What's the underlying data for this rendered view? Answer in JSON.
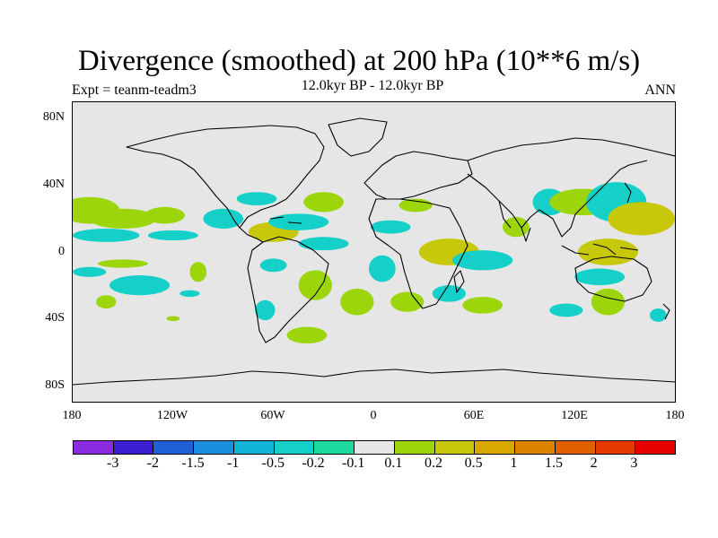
{
  "chart_data": {
    "type": "heatmap",
    "title": "Divergence (smoothed) at 200 hPa (10**6 m/s)",
    "subtitle": "12.0kyr BP - 12.0kyr BP",
    "left_label": "Expt = teanm-teadm3",
    "right_label": "ANN",
    "x_range": [
      -180,
      180
    ],
    "y_range": [
      -90,
      90
    ],
    "x_ticks": [
      "180",
      "120W",
      "60W",
      "0",
      "60E",
      "120E",
      "180"
    ],
    "y_ticks": [
      "80N",
      "40N",
      "0",
      "40S",
      "80S"
    ],
    "colorbar": {
      "colors": [
        "#8a2be2",
        "#3a1fd0",
        "#1f5fd8",
        "#1a8fe0",
        "#12b4d8",
        "#14d0c8",
        "#1ed9a0",
        "#e6e6e6",
        "#9cd60a",
        "#c8c80a",
        "#d8a800",
        "#dc8400",
        "#e06000",
        "#e43a00",
        "#e80000"
      ],
      "labels": [
        "-3",
        "-2",
        "-1.5",
        "-1",
        "-0.5",
        "-0.2",
        "-0.1",
        "0.1",
        "0.2",
        "0.5",
        "1",
        "1.5",
        "2",
        "3"
      ]
    },
    "background_color": "#e6e6e6",
    "blobs": [
      {
        "lon": -170,
        "lat": 25,
        "rx": 18,
        "ry": 8,
        "cls": "green"
      },
      {
        "lon": -150,
        "lat": 20,
        "rx": 20,
        "ry": 6,
        "cls": "green"
      },
      {
        "lon": -125,
        "lat": 22,
        "rx": 12,
        "ry": 5,
        "cls": "green"
      },
      {
        "lon": -160,
        "lat": 10,
        "rx": 20,
        "ry": 4,
        "cls": "cyan"
      },
      {
        "lon": -120,
        "lat": 10,
        "rx": 15,
        "ry": 3,
        "cls": "cyan"
      },
      {
        "lon": -170,
        "lat": -12,
        "rx": 10,
        "ry": 3,
        "cls": "cyan"
      },
      {
        "lon": -150,
        "lat": -7,
        "rx": 15,
        "ry": 2.5,
        "cls": "green"
      },
      {
        "lon": -140,
        "lat": -20,
        "rx": 18,
        "ry": 6,
        "cls": "cyan"
      },
      {
        "lon": -160,
        "lat": -30,
        "rx": 6,
        "ry": 4,
        "cls": "green"
      },
      {
        "lon": -110,
        "lat": -25,
        "rx": 6,
        "ry": 2,
        "cls": "cyan"
      },
      {
        "lon": -120,
        "lat": -40,
        "rx": 4,
        "ry": 1.5,
        "cls": "green"
      },
      {
        "lon": -105,
        "lat": -12,
        "rx": 5,
        "ry": 6,
        "cls": "green"
      },
      {
        "lon": -90,
        "lat": 20,
        "rx": 12,
        "ry": 6,
        "cls": "cyan"
      },
      {
        "lon": -70,
        "lat": 32,
        "rx": 12,
        "ry": 4,
        "cls": "cyan"
      },
      {
        "lon": -60,
        "lat": 12,
        "rx": 15,
        "ry": 6,
        "cls": "yellow"
      },
      {
        "lon": -45,
        "lat": 18,
        "rx": 18,
        "ry": 5,
        "cls": "cyan"
      },
      {
        "lon": -30,
        "lat": 30,
        "rx": 12,
        "ry": 6,
        "cls": "green"
      },
      {
        "lon": -30,
        "lat": 5,
        "rx": 15,
        "ry": 4,
        "cls": "cyan"
      },
      {
        "lon": -60,
        "lat": -8,
        "rx": 8,
        "ry": 4,
        "cls": "cyan"
      },
      {
        "lon": -35,
        "lat": -20,
        "rx": 10,
        "ry": 9,
        "cls": "green"
      },
      {
        "lon": -65,
        "lat": -35,
        "rx": 6,
        "ry": 6,
        "cls": "cyan"
      },
      {
        "lon": -40,
        "lat": -50,
        "rx": 12,
        "ry": 5,
        "cls": "green"
      },
      {
        "lon": -10,
        "lat": -30,
        "rx": 10,
        "ry": 8,
        "cls": "green"
      },
      {
        "lon": 10,
        "lat": 15,
        "rx": 12,
        "ry": 4,
        "cls": "cyan"
      },
      {
        "lon": 25,
        "lat": 28,
        "rx": 10,
        "ry": 4,
        "cls": "green"
      },
      {
        "lon": 5,
        "lat": -10,
        "rx": 8,
        "ry": 8,
        "cls": "cyan"
      },
      {
        "lon": 20,
        "lat": -30,
        "rx": 10,
        "ry": 6,
        "cls": "green"
      },
      {
        "lon": 45,
        "lat": 0,
        "rx": 18,
        "ry": 8,
        "cls": "yellow"
      },
      {
        "lon": 65,
        "lat": -5,
        "rx": 18,
        "ry": 6,
        "cls": "cyan"
      },
      {
        "lon": 45,
        "lat": -25,
        "rx": 10,
        "ry": 5,
        "cls": "cyan"
      },
      {
        "lon": 65,
        "lat": -32,
        "rx": 12,
        "ry": 5,
        "cls": "green"
      },
      {
        "lon": 85,
        "lat": 15,
        "rx": 8,
        "ry": 6,
        "cls": "green"
      },
      {
        "lon": 105,
        "lat": 30,
        "rx": 10,
        "ry": 8,
        "cls": "cyan"
      },
      {
        "lon": 125,
        "lat": 30,
        "rx": 20,
        "ry": 8,
        "cls": "green"
      },
      {
        "lon": 145,
        "lat": 30,
        "rx": 18,
        "ry": 12,
        "cls": "cyan"
      },
      {
        "lon": 160,
        "lat": 20,
        "rx": 20,
        "ry": 10,
        "cls": "yellow"
      },
      {
        "lon": 140,
        "lat": 0,
        "rx": 18,
        "ry": 8,
        "cls": "yellow"
      },
      {
        "lon": 135,
        "lat": -15,
        "rx": 15,
        "ry": 5,
        "cls": "cyan"
      },
      {
        "lon": 115,
        "lat": -35,
        "rx": 10,
        "ry": 4,
        "cls": "cyan"
      },
      {
        "lon": 140,
        "lat": -30,
        "rx": 10,
        "ry": 8,
        "cls": "green"
      },
      {
        "lon": 170,
        "lat": -38,
        "rx": 5,
        "ry": 4,
        "cls": "cyan"
      }
    ]
  }
}
